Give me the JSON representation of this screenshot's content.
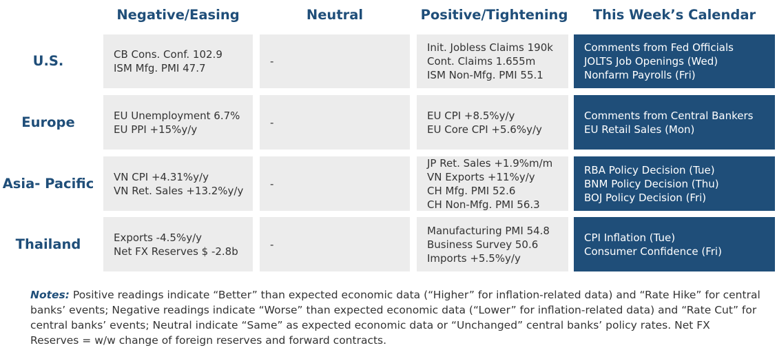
{
  "headers": {
    "negative": "Negative/Easing",
    "neutral": "Neutral",
    "positive": "Positive/Tightening",
    "calendar": "This Week’s Calendar"
  },
  "rows": [
    {
      "region_lines": [
        "U.S."
      ],
      "negative": [
        "CB Cons. Conf. 102.9",
        "ISM Mfg. PMI 47.7"
      ],
      "neutral": [
        "-"
      ],
      "positive": [
        "Init. Jobless Claims 190k",
        "Cont. Claims 1.655m",
        "ISM Non-Mfg. PMI 55.1"
      ],
      "calendar": [
        "Comments from Fed Officials",
        "JOLTS Job Openings (Wed)",
        "Nonfarm Payrolls (Fri)"
      ]
    },
    {
      "region_lines": [
        "Europe"
      ],
      "negative": [
        "EU Unemployment 6.7%",
        "EU PPI +15%y/y"
      ],
      "neutral": [
        "-"
      ],
      "positive": [
        "EU CPI +8.5%y/y",
        "EU Core CPI +5.6%y/y"
      ],
      "calendar": [
        "Comments from Central Bankers",
        "EU Retail Sales (Mon)"
      ]
    },
    {
      "region_lines": [
        "Asia-",
        "Pacific"
      ],
      "negative": [
        "VN CPI +4.31%y/y",
        "VN Ret. Sales +13.2%y/y"
      ],
      "neutral": [
        "-"
      ],
      "positive": [
        "JP Ret. Sales +1.9%m/m",
        "VN Exports +11%y/y",
        "CH Mfg. PMI 52.6",
        "CH Non-Mfg. PMI 56.3"
      ],
      "calendar": [
        "RBA Policy Decision (Tue)",
        "BNM Policy Decision (Thu)",
        "BOJ Policy Decision (Fri)"
      ]
    },
    {
      "region_lines": [
        "Thailand"
      ],
      "negative": [
        "Exports -4.5%y/y",
        "Net FX Reserves $ -2.8b"
      ],
      "neutral": [
        "-"
      ],
      "positive": [
        "Manufacturing PMI 54.8",
        "Business Survey 50.6",
        "Imports +5.5%y/y"
      ],
      "calendar": [
        "CPI Inflation (Tue)",
        "Consumer Confidence (Fri)"
      ]
    }
  ],
  "notes": {
    "label": "Notes:",
    "text": " Positive readings indicate “Better” than expected economic data (“Higher” for inflation-related data) and “Rate Hike” for central banks’ events; Negative readings indicate “Worse” than expected economic data (“Lower” for inflation-related data) and “Rate Cut” for central banks’ events; Neutral indicate “Same” as expected economic data or “Unchanged” central banks’ policy rates. Net FX Reserves = w/w change of foreign reserves and forward contracts."
  },
  "colors": {
    "accent": "#1f4e79",
    "cell_grey": "#ececec",
    "text": "#333333"
  }
}
